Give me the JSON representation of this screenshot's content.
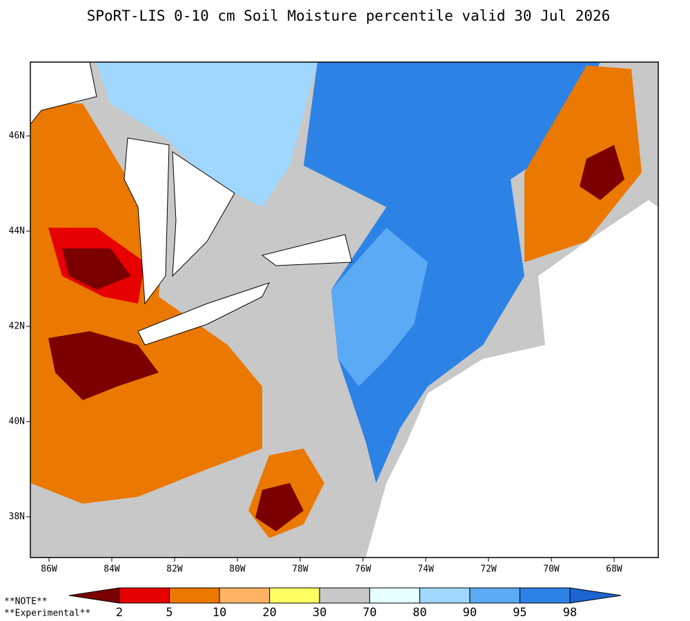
{
  "title": "SPoRT-LIS 0-10 cm Soil Moisture percentile valid 30 Jul 2026",
  "map": {
    "lon_ticks": [
      {
        "value": -86,
        "label": "86W"
      },
      {
        "value": -84,
        "label": "84W"
      },
      {
        "value": -82,
        "label": "82W"
      },
      {
        "value": -80,
        "label": "80W"
      },
      {
        "value": -78,
        "label": "78W"
      },
      {
        "value": -76,
        "label": "76W"
      },
      {
        "value": -74,
        "label": "74W"
      },
      {
        "value": -72,
        "label": "72W"
      },
      {
        "value": -70,
        "label": "70W"
      },
      {
        "value": -68,
        "label": "68W"
      }
    ],
    "lat_ticks": [
      {
        "value": 46,
        "label": "46N"
      },
      {
        "value": 44,
        "label": "44N"
      },
      {
        "value": 42,
        "label": "42N"
      },
      {
        "value": 40,
        "label": "40N"
      },
      {
        "value": 38,
        "label": "38N"
      }
    ]
  },
  "colorbar": {
    "ticks": [
      2,
      5,
      10,
      20,
      30,
      70,
      80,
      90,
      95,
      98
    ],
    "colors": [
      "#7a0000",
      "#e60000",
      "#eb7800",
      "#ffb464",
      "#ffff64",
      "#c8c8c8",
      "#e6ffff",
      "#a0d7ff",
      "#5aaaf5",
      "#2d82e6",
      "#1e64d2"
    ]
  },
  "notes": [
    "**NOTE**",
    "**Experimental**"
  ]
}
